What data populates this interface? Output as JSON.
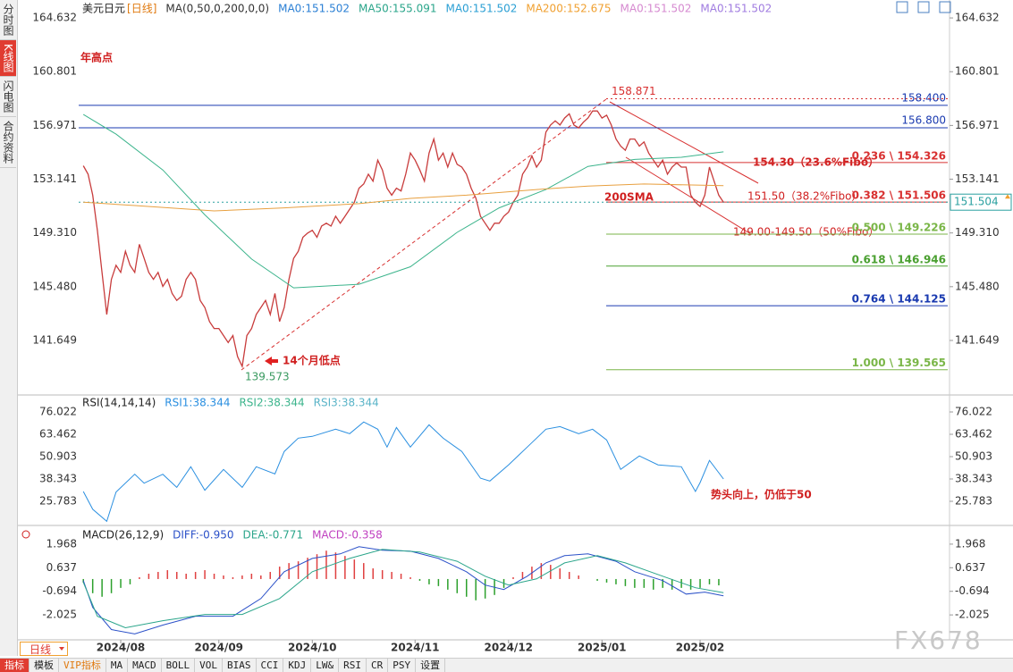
{
  "sidebar": [
    "分时图",
    "K线图",
    "闪电图",
    "合约资料"
  ],
  "chart_data": [
    {
      "type": "line",
      "title": "美元日元",
      "subtitle": "[日线]",
      "header_items": [
        {
          "text": "MA(0,50,0,200,0,0)",
          "color": "#333333"
        },
        {
          "text": "MA0:151.502",
          "color": "#2a7fd4"
        },
        {
          "text": "MA50:155.091",
          "color": "#2aa58a"
        },
        {
          "text": "MA0:151.502",
          "color": "#2a9fd4"
        },
        {
          "text": "MA200:152.675",
          "color": "#f0a030"
        },
        {
          "text": "MA0:151.502",
          "color": "#d68ad0"
        },
        {
          "text": "MA0:151.502",
          "color": "#a07ce0"
        }
      ],
      "xlim": [
        -1,
        185
      ],
      "ylim": [
        137.89,
        165.91
      ],
      "yticks": [
        164.632,
        160.801,
        156.971,
        153.141,
        {
          "value": 149.31,
          "label": "149.310"
        },
        {
          "value": 145.48,
          "label": "145.480"
        },
        141.649
      ],
      "series": [
        {
          "color": "#c83c3c",
          "values": [
            154.1,
            153.5,
            152.0,
            149.5,
            146.5,
            143.5,
            146.0,
            147.0,
            146.5,
            148.0,
            147.0,
            146.5,
            148.5,
            147.5,
            146.5,
            146.0,
            146.5,
            145.5,
            146.0,
            145.0,
            144.5,
            144.8,
            146.0,
            146.5,
            146.0,
            144.5,
            144.0,
            143.0,
            142.5,
            142.5,
            142.0,
            141.5,
            142.0,
            140.5,
            139.8,
            142.0,
            142.5,
            143.5,
            144.0,
            144.5,
            143.5,
            145.0,
            143.0,
            144.0,
            146.0,
            147.5,
            148.0,
            149.0,
            149.3,
            149.5,
            149.0,
            149.8,
            150.0,
            149.8,
            150.5,
            150.0,
            150.5,
            151.0,
            151.5,
            152.5,
            152.8,
            153.5,
            153.0,
            154.5,
            153.8,
            152.5,
            152.0,
            152.5,
            152.3,
            153.5,
            155.0,
            154.5,
            153.8,
            153.0,
            155.0,
            156.0,
            154.5,
            155.0,
            154.0,
            155.0,
            154.2,
            154.0,
            153.5,
            152.5,
            151.8,
            150.5,
            150.0,
            149.5,
            150.0,
            150.0,
            150.5,
            150.8,
            151.5,
            152.0,
            153.5,
            154.0,
            154.8,
            154.0,
            154.5,
            156.5,
            157.0,
            157.3,
            157.0,
            157.5,
            157.8,
            157.0,
            156.8,
            157.2,
            157.5,
            158.0,
            158.0,
            157.5,
            157.7,
            157.0,
            156.0,
            155.5,
            155.2,
            156.0,
            156.0,
            155.5,
            155.8,
            155.0,
            154.5,
            154.0,
            154.5,
            153.5,
            154.0,
            154.3,
            154.0,
            154.0,
            152.0,
            151.5,
            151.2,
            152.0,
            154.0,
            153.0,
            152.0,
            151.5
          ]
        },
        {
          "color": "#3cb48c",
          "x": [
            0,
            7,
            17,
            26,
            36,
            45,
            59,
            70,
            80,
            89,
            99,
            108,
            118,
            128,
            137
          ],
          "values": [
            157.75,
            156.35,
            153.8,
            150.6,
            147.45,
            145.4,
            145.65,
            146.9,
            149.35,
            151.1,
            152.4,
            154.05,
            154.55,
            154.7,
            155.09
          ]
        },
        {
          "color": "#e8a040",
          "x": [
            0,
            11,
            28,
            43,
            59,
            70,
            82,
            97,
            108,
            120,
            137
          ],
          "values": [
            151.5,
            151.26,
            150.88,
            151.1,
            151.4,
            151.77,
            152.0,
            152.4,
            152.65,
            152.8,
            152.68
          ]
        }
      ],
      "levels": [
        {
          "kind": "line",
          "value": 158.4,
          "label": "158.400",
          "color": "#1a3ab0"
        },
        {
          "kind": "line",
          "value": 156.8,
          "label": "156.800",
          "color": "#1a3ab0"
        },
        {
          "kind": "high",
          "value": 158.871,
          "label": "158.871",
          "color": "#d83030"
        },
        {
          "kind": "fibo",
          "value": 154.326,
          "label": "0.236 \\ 154.326",
          "color": "#d83030"
        },
        {
          "kind": "fibo",
          "value": 151.506,
          "label": "0.382 \\ 151.506",
          "color": "#d83030"
        },
        {
          "kind": "fibo",
          "value": 149.226,
          "label": "0.500 \\ 149.226",
          "color": "#7ab648"
        },
        {
          "kind": "fibo",
          "value": 146.946,
          "label": "0.618 \\ 146.946",
          "color": "#4aa030"
        },
        {
          "kind": "fibo",
          "value": 144.125,
          "label": "0.764 \\ 144.125",
          "color": "#1a3ab0"
        },
        {
          "kind": "fibo",
          "value": 139.565,
          "label": "1.000 \\ 139.565",
          "color": "#7ab648"
        },
        {
          "kind": "last",
          "value": 151.504,
          "label": "151.504",
          "color": "#2aa0a0"
        }
      ],
      "annotations": [
        "年高点",
        "14个月低点",
        "139.573",
        "200SMA",
        "154.30（23.6%Fibo）",
        "151.50（38.2%Fibo）",
        "149.00-149.50（50%Fibo）"
      ]
    },
    {
      "type": "line",
      "title": "RSI(14,14,14)",
      "header_items": [
        {
          "text": "RSI1:38.344",
          "color": "#2a8fe0"
        },
        {
          "text": "RSI2:38.344",
          "color": "#3cb48c"
        },
        {
          "text": "RSI3:38.344",
          "color": "#5ab4c8"
        }
      ],
      "xlim": [
        -1,
        185
      ],
      "ylim": [
        13.72,
        84.06
      ],
      "yticks": [
        76.022,
        63.462,
        50.903,
        38.343,
        25.783
      ],
      "series": [
        {
          "color": "#2a8fe0",
          "x": [
            0,
            2,
            5,
            7,
            11,
            13,
            17,
            20,
            23,
            26,
            30,
            34,
            37,
            41,
            43,
            46,
            49,
            54,
            57,
            60,
            63,
            65,
            67,
            70,
            74,
            77,
            81,
            85,
            87,
            91,
            95,
            99,
            102,
            106,
            109,
            112,
            115,
            119,
            123,
            128,
            131,
            132,
            134,
            137
          ],
          "values": [
            31.3,
            21.3,
            14.5,
            31,
            41,
            36,
            41,
            33.6,
            45.2,
            32,
            43.7,
            33.6,
            45.2,
            41.2,
            53.8,
            61.3,
            62.3,
            66.3,
            63.8,
            70.4,
            66.3,
            56.3,
            67.3,
            56.3,
            68.8,
            61.3,
            53.8,
            38.8,
            37.2,
            46.3,
            56.3,
            66.3,
            67.8,
            63.8,
            66.3,
            60.3,
            43.7,
            51.3,
            46.3,
            45.2,
            31.3,
            36.3,
            48.8,
            38.34
          ]
        }
      ],
      "annotations": [
        "势头向上，仍低于50"
      ]
    },
    {
      "type": "macd",
      "title": "MACD(26,12,9)",
      "header_items": [
        {
          "text": "DIFF:-0.950",
          "color": "#2a50c8"
        },
        {
          "text": "DEA:-0.771",
          "color": "#2aa58a"
        },
        {
          "text": "MACD:-0.358",
          "color": "#c040c0"
        }
      ],
      "xlim": [
        -1,
        185
      ],
      "ylim": [
        -3.38,
        2.77
      ],
      "yticks": [
        1.968,
        0.637,
        -0.694,
        -2.025
      ],
      "xticks": [
        {
          "value": 8,
          "label": "2024/08"
        },
        {
          "value": 29,
          "label": "2024/09"
        },
        {
          "value": 49,
          "label": "2024/10"
        },
        {
          "value": 71,
          "label": "2024/11"
        },
        {
          "value": 91,
          "label": "2024/12"
        },
        {
          "value": 111,
          "label": "2025/01"
        },
        {
          "value": 132,
          "label": "2025/02"
        }
      ],
      "series": [
        {
          "color": "#2a50c8",
          "x": [
            0,
            2,
            6,
            11,
            17,
            24,
            32,
            38,
            43,
            49,
            55,
            59,
            64,
            70,
            76,
            82,
            86,
            90,
            95,
            99,
            103,
            108,
            114,
            118,
            124,
            129,
            133,
            137
          ],
          "values": [
            -0.09,
            -1.6,
            -2.85,
            -3.1,
            -2.6,
            -2.1,
            -2.1,
            -1.1,
            0.41,
            1.16,
            1.42,
            1.82,
            1.62,
            1.57,
            1.16,
            0.41,
            -0.34,
            -0.59,
            0.16,
            0.91,
            1.32,
            1.42,
            1.0,
            0.41,
            -0.09,
            -0.85,
            -0.74,
            -0.95
          ]
        },
        {
          "color": "#2aa58a",
          "x": [
            0,
            3,
            9,
            17,
            26,
            34,
            42,
            49,
            57,
            64,
            72,
            80,
            86,
            91,
            97,
            103,
            110,
            116,
            124,
            131,
            137
          ],
          "values": [
            -0.19,
            -2.1,
            -2.75,
            -2.35,
            -2.0,
            -2.0,
            -1.1,
            0.41,
            1.16,
            1.67,
            1.52,
            1.0,
            0.16,
            -0.34,
            0.01,
            0.91,
            1.32,
            0.91,
            0.16,
            -0.49,
            -0.771
          ]
        }
      ],
      "histogram": {
        "up_color": "#e04040",
        "down_color": "#2ca02c",
        "x": [
          0,
          2,
          4,
          6,
          8,
          10,
          12,
          14,
          16,
          18,
          20,
          22,
          24,
          26,
          28,
          30,
          32,
          34,
          36,
          38,
          40,
          42,
          44,
          46,
          48,
          50,
          52,
          54,
          56,
          58,
          60,
          62,
          64,
          66,
          68,
          70,
          72,
          74,
          76,
          78,
          80,
          82,
          84,
          86,
          88,
          90,
          92,
          94,
          96,
          98,
          100,
          102,
          104,
          106,
          108,
          110,
          112,
          114,
          116,
          118,
          120,
          122,
          124,
          126,
          128,
          130,
          132,
          134,
          136
        ],
        "values": [
          -0.2,
          -0.8,
          -1.0,
          -0.8,
          -0.5,
          -0.3,
          0.1,
          0.3,
          0.4,
          0.5,
          0.4,
          0.3,
          0.4,
          0.5,
          0.3,
          0.2,
          0.1,
          0.2,
          0.3,
          0.2,
          0.4,
          0.7,
          0.9,
          1.0,
          1.2,
          1.4,
          1.6,
          1.5,
          1.3,
          1.1,
          0.9,
          0.6,
          0.5,
          0.4,
          0.3,
          0.1,
          -0.1,
          -0.3,
          -0.4,
          -0.6,
          -0.8,
          -1.0,
          -1.2,
          -1.1,
          -0.9,
          -0.5,
          0.1,
          0.4,
          0.7,
          0.9,
          0.8,
          0.6,
          0.4,
          0.2,
          0.0,
          -0.1,
          -0.2,
          -0.3,
          -0.4,
          -0.5,
          -0.5,
          -0.6,
          -0.5,
          -0.6,
          -0.5,
          -0.6,
          -0.5,
          -0.3,
          -0.358
        ]
      }
    }
  ],
  "toolbar": {
    "period": "日线",
    "tabs": [
      "指标",
      "模板",
      "VIP指标",
      "MA",
      "MACD",
      "BOLL",
      "VOL",
      "BIAS",
      "CCI",
      "KDJ",
      "LW&",
      "RSI",
      "CR",
      "PSY",
      "设置"
    ]
  },
  "watermark": "FX678"
}
